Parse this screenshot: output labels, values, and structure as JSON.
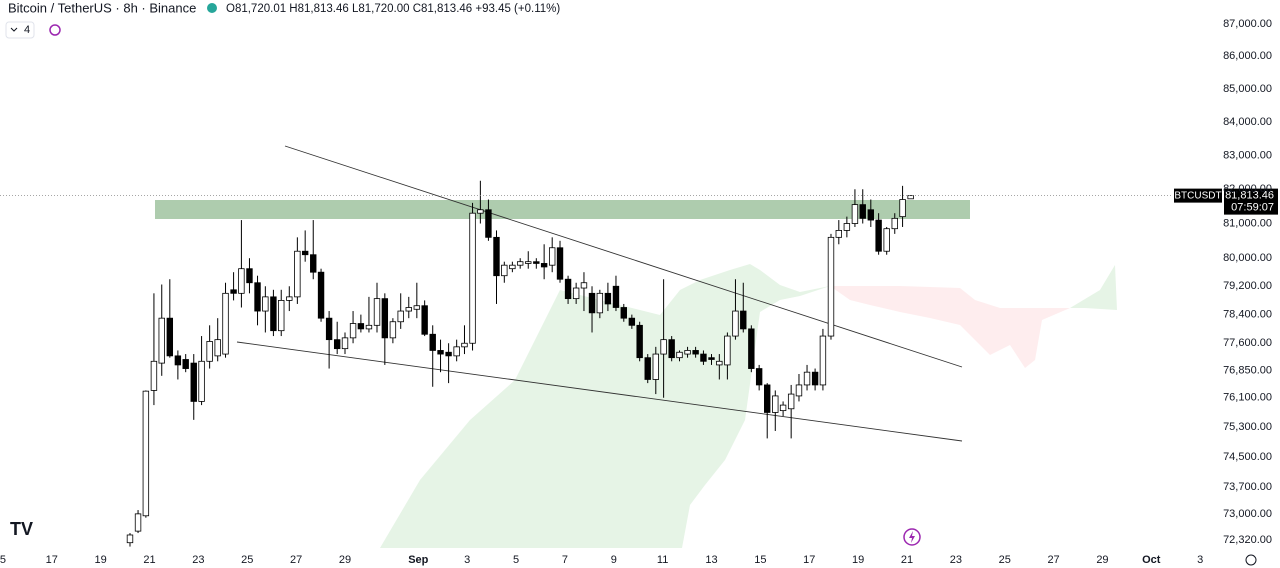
{
  "chart_data": {
    "type": "candlestick",
    "title": "Bitcoin / TetherUS · 8h · Binance",
    "ohlc_text": "O81,720.01 H81,813.46 L81,720.00 C81,813.46 +93.45 (+0.11%)",
    "indicator_count": "4",
    "symbol_label": "BTCUSDT",
    "last_price": {
      "value": 81813.46,
      "label": "81,813.46"
    },
    "countdown": "07:59:07",
    "log_scale": true,
    "up_color": "#ffffff",
    "down_color": "#000000",
    "xlim": [
      -0.12,
      50.63
    ],
    "ylim": [
      72113,
      87751
    ],
    "xticks": [
      {
        "value": 0,
        "label": "5"
      },
      {
        "value": 2,
        "label": "17"
      },
      {
        "value": 4,
        "label": "19"
      },
      {
        "value": 6,
        "label": "21"
      },
      {
        "value": 8,
        "label": "23"
      },
      {
        "value": 10,
        "label": "25"
      },
      {
        "value": 12,
        "label": "27"
      },
      {
        "value": 14,
        "label": "29"
      },
      {
        "value": 17,
        "label": "Sep"
      },
      {
        "value": 19,
        "label": "3"
      },
      {
        "value": 21,
        "label": "5"
      },
      {
        "value": 23,
        "label": "7"
      },
      {
        "value": 25,
        "label": "9"
      },
      {
        "value": 27,
        "label": "11"
      },
      {
        "value": 29,
        "label": "13"
      },
      {
        "value": 31,
        "label": "15"
      },
      {
        "value": 33,
        "label": "17"
      },
      {
        "value": 35,
        "label": "19"
      },
      {
        "value": 37,
        "label": "21"
      },
      {
        "value": 39,
        "label": "23"
      },
      {
        "value": 41,
        "label": "25"
      },
      {
        "value": 43,
        "label": "27"
      },
      {
        "value": 45,
        "label": "29"
      },
      {
        "value": 47,
        "label": "Oct"
      },
      {
        "value": 49,
        "label": "3"
      }
    ],
    "yticks": [
      {
        "value": 87000,
        "label": "87,000.00"
      },
      {
        "value": 86000,
        "label": "86,000.00"
      },
      {
        "value": 85000,
        "label": "85,000.00"
      },
      {
        "value": 84000,
        "label": "84,000.00"
      },
      {
        "value": 83000,
        "label": "83,000.00"
      },
      {
        "value": 82000,
        "label": "82,000.00"
      },
      {
        "value": 81000,
        "label": "81,000.00"
      },
      {
        "value": 80000,
        "label": "80,000.00"
      },
      {
        "value": 79200,
        "label": "79,200.00"
      },
      {
        "value": 78400,
        "label": "78,400.00"
      },
      {
        "value": 77600,
        "label": "77,600.00"
      },
      {
        "value": 76850,
        "label": "76,850.00"
      },
      {
        "value": 76100,
        "label": "76,100.00"
      },
      {
        "value": 75300,
        "label": "75,300.00"
      },
      {
        "value": 74500,
        "label": "74,500.00"
      },
      {
        "value": 73700,
        "label": "73,700.00"
      },
      {
        "value": 73000,
        "label": "73,000.00"
      },
      {
        "value": 72320,
        "label": "72,320.00"
      }
    ],
    "x": [
      5.2,
      5.53,
      5.85,
      6.18,
      6.5,
      6.83,
      7.16,
      7.48,
      7.81,
      8.13,
      8.46,
      8.79,
      9.11,
      9.44,
      9.76,
      10.09,
      10.42,
      10.74,
      11.07,
      11.39,
      11.72,
      12.05,
      12.37,
      12.7,
      13.02,
      13.35,
      13.68,
      14.0,
      14.33,
      14.65,
      14.98,
      15.31,
      15.63,
      15.96,
      16.28,
      16.61,
      16.94,
      17.26,
      17.59,
      17.91,
      18.24,
      18.57,
      18.89,
      19.22,
      19.54,
      19.87,
      20.2,
      20.52,
      20.85,
      21.17,
      21.5,
      21.83,
      22.15,
      22.48,
      22.8,
      23.13,
      23.46,
      23.78,
      24.11,
      24.43,
      24.76,
      25.09,
      25.41,
      25.74,
      26.06,
      26.39,
      26.72,
      27.04,
      27.37,
      27.69,
      28.02,
      28.35,
      28.67,
      29.0,
      29.32,
      29.65,
      29.98,
      30.3,
      30.63,
      30.95,
      31.28,
      31.61,
      31.93,
      32.26,
      32.58,
      32.91,
      33.24,
      33.56,
      33.89,
      34.21,
      34.54,
      34.87,
      35.19,
      35.52,
      35.84,
      36.17,
      36.5,
      36.82,
      37.15
    ],
    "open": [
      72250,
      72550,
      72950,
      76300,
      77050,
      78300,
      77250,
      77150,
      77050,
      76000,
      77100,
      77250,
      77300,
      79100,
      79000,
      79700,
      79300,
      78500,
      78900,
      77950,
      78800,
      78900,
      80200,
      80100,
      79600,
      78300,
      77700,
      77450,
      77750,
      78150,
      78000,
      78100,
      78850,
      77750,
      78200,
      78500,
      78550,
      78650,
      77850,
      77400,
      77350,
      77250,
      77500,
      77600,
      81300,
      81400,
      80600,
      79500,
      79700,
      79800,
      79850,
      79900,
      79850,
      79800,
      80300,
      79400,
      78850,
      79150,
      79000,
      78450,
      79000,
      79200,
      78600,
      78300,
      78100,
      77200,
      76600,
      77300,
      77700,
      77200,
      77300,
      77400,
      77300,
      77200,
      77000,
      77000,
      77800,
      78500,
      78000,
      76900,
      76450,
      75700,
      75750,
      75800,
      76150,
      76450,
      76800,
      76450,
      77800,
      80600,
      80800,
      81000,
      81550,
      81400,
      81100,
      80200,
      80850,
      81200,
      81720.01
    ],
    "high": [
      72500,
      73100,
      76300,
      79000,
      79250,
      79400,
      77400,
      77300,
      77300,
      77800,
      78100,
      78300,
      79300,
      79600,
      81100,
      80000,
      79500,
      79200,
      79100,
      79100,
      79200,
      80600,
      80800,
      81100,
      79700,
      78500,
      78200,
      77900,
      78500,
      78400,
      78900,
      79300,
      79000,
      78300,
      79000,
      78900,
      79300,
      78800,
      78100,
      77700,
      77600,
      77700,
      78100,
      81600,
      82250,
      81700,
      80800,
      79900,
      79900,
      80000,
      80200,
      80000,
      80400,
      80600,
      80500,
      79500,
      79300,
      79600,
      79200,
      79100,
      79300,
      79500,
      78700,
      78400,
      78200,
      77300,
      77500,
      79400,
      77800,
      77400,
      77500,
      77500,
      77400,
      77300,
      77300,
      77900,
      79400,
      79300,
      78100,
      77000,
      76500,
      76300,
      76000,
      76450,
      76750,
      77000,
      76900,
      78000,
      80700,
      81100,
      81200,
      82000,
      82000,
      81700,
      81300,
      80900,
      81300,
      82100,
      81813.46
    ],
    "low": [
      72150,
      72500,
      72900,
      75900,
      76700,
      77200,
      76600,
      76800,
      75500,
      75900,
      76900,
      77100,
      77200,
      78800,
      78600,
      79000,
      78100,
      77900,
      77800,
      77800,
      78500,
      78700,
      79900,
      79400,
      78200,
      76900,
      77300,
      77300,
      77600,
      77900,
      77900,
      77900,
      77000,
      77600,
      78000,
      78300,
      78300,
      77800,
      76400,
      76800,
      76500,
      77100,
      77300,
      77400,
      81000,
      80500,
      78700,
      79300,
      79600,
      79700,
      79700,
      79700,
      79400,
      79600,
      79300,
      78700,
      78700,
      78500,
      77900,
      78300,
      78500,
      78500,
      78200,
      78000,
      77100,
      76500,
      76200,
      76100,
      77100,
      77100,
      77200,
      77200,
      77000,
      77000,
      76600,
      76600,
      77700,
      77900,
      76800,
      76300,
      75000,
      75200,
      75600,
      75000,
      76000,
      76300,
      76300,
      76300,
      77700,
      80400,
      80600,
      80900,
      81000,
      80900,
      80100,
      80100,
      80700,
      80900,
      81720
    ],
    "close": [
      72450,
      73000,
      76280,
      77100,
      78300,
      77250,
      77000,
      76900,
      76000,
      77100,
      77650,
      77700,
      79000,
      79000,
      79700,
      79300,
      78500,
      78900,
      77950,
      78800,
      78900,
      80200,
      80100,
      79600,
      78300,
      77700,
      77450,
      77750,
      78150,
      78000,
      78100,
      78850,
      77750,
      78200,
      78500,
      78600,
      78650,
      77850,
      77400,
      77300,
      77250,
      77500,
      77600,
      81300,
      81400,
      80600,
      79500,
      79800,
      79800,
      79900,
      79900,
      79850,
      79750,
      80300,
      79400,
      78850,
      79150,
      79300,
      78450,
      79000,
      78700,
      78600,
      78300,
      78100,
      77200,
      76600,
      77300,
      77700,
      77200,
      77350,
      77400,
      77300,
      77100,
      77150,
      77100,
      77800,
      78500,
      78000,
      76900,
      76450,
      75700,
      76150,
      75900,
      76200,
      76450,
      76800,
      76450,
      77800,
      80600,
      80800,
      81000,
      81550,
      81150,
      81100,
      80200,
      80850,
      81150,
      81700,
      81813.46
    ]
  }
}
